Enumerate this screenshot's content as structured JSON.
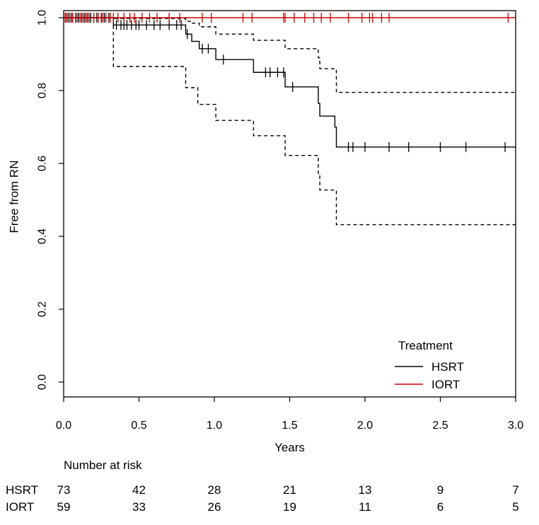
{
  "chart_data": {
    "type": "line",
    "subtype": "kaplan-meier",
    "title": "",
    "xlabel": "Years",
    "ylabel": "Free from RN",
    "xlim": [
      0,
      3
    ],
    "ylim": [
      -0.05,
      1.02
    ],
    "x_ticks": [
      0,
      0.5,
      1,
      1.5,
      2,
      2.5,
      3
    ],
    "x_tick_labels": [
      "0.0",
      "0.5",
      "1.0",
      "1.5",
      "2.0",
      "2.5",
      "3.0"
    ],
    "y_ticks": [
      0,
      0.2,
      0.4,
      0.6,
      0.8,
      1.0
    ],
    "y_tick_labels": [
      "0.0",
      "0.2",
      "0.4",
      "0.6",
      "0.8",
      "1.0"
    ],
    "legend": {
      "title": "Treatment",
      "position": "bottom-right",
      "entries": [
        {
          "label": "HSRT",
          "color": "#000000"
        },
        {
          "label": "IORT",
          "color": "#cc0000"
        }
      ]
    },
    "series": [
      {
        "name": "HSRT",
        "color": "#000000",
        "style": "solid",
        "steps": [
          [
            0,
            1.0
          ],
          [
            0.33,
            0.98
          ],
          [
            0.81,
            0.955
          ],
          [
            0.85,
            0.935
          ],
          [
            0.9,
            0.915
          ],
          [
            1.01,
            0.885
          ],
          [
            1.26,
            0.85
          ],
          [
            1.47,
            0.81
          ],
          [
            1.69,
            0.765
          ],
          [
            1.7,
            0.73
          ],
          [
            1.8,
            0.7
          ],
          [
            1.81,
            0.645
          ],
          [
            3.0,
            0.645
          ]
        ],
        "censored": [
          0.01,
          0.02,
          0.03,
          0.05,
          0.06,
          0.08,
          0.1,
          0.12,
          0.14,
          0.16,
          0.18,
          0.2,
          0.22,
          0.25,
          0.27,
          0.3,
          0.35,
          0.38,
          0.4,
          0.42,
          0.45,
          0.48,
          0.5,
          0.55,
          0.6,
          0.64,
          0.7,
          0.75,
          0.78,
          0.82,
          0.92,
          0.96,
          1.06,
          1.34,
          1.37,
          1.42,
          1.46,
          1.52,
          1.89,
          1.92,
          2.0,
          2.16,
          2.29,
          2.5,
          2.67,
          2.93
        ]
      },
      {
        "name": "HSRT upper 95% CI",
        "color": "#000000",
        "style": "dashed",
        "steps": [
          [
            0,
            1.0
          ],
          [
            0.33,
            0.998
          ],
          [
            0.81,
            0.99
          ],
          [
            0.85,
            0.985
          ],
          [
            0.9,
            0.975
          ],
          [
            1.01,
            0.955
          ],
          [
            1.26,
            0.938
          ],
          [
            1.47,
            0.915
          ],
          [
            1.69,
            0.89
          ],
          [
            1.7,
            0.86
          ],
          [
            1.81,
            0.795
          ],
          [
            3.0,
            0.795
          ]
        ]
      },
      {
        "name": "HSRT lower 95% CI",
        "color": "#000000",
        "style": "dashed",
        "steps": [
          [
            0,
            1.0
          ],
          [
            0.33,
            0.866
          ],
          [
            0.81,
            0.808
          ],
          [
            0.89,
            0.762
          ],
          [
            1.01,
            0.718
          ],
          [
            1.26,
            0.676
          ],
          [
            1.47,
            0.622
          ],
          [
            1.69,
            0.57
          ],
          [
            1.7,
            0.527
          ],
          [
            1.81,
            0.432
          ],
          [
            3.0,
            0.432
          ]
        ]
      },
      {
        "name": "IORT",
        "color": "#cc0000",
        "style": "solid",
        "steps": [
          [
            0,
            1.0
          ],
          [
            3.0,
            1.0
          ]
        ],
        "censored": [
          0.01,
          0.02,
          0.04,
          0.06,
          0.09,
          0.11,
          0.13,
          0.15,
          0.17,
          0.2,
          0.23,
          0.26,
          0.28,
          0.31,
          0.33,
          0.36,
          0.4,
          0.44,
          0.47,
          0.52,
          0.57,
          0.62,
          0.7,
          0.77,
          0.92,
          0.98,
          1.19,
          1.25,
          1.46,
          1.47,
          1.53,
          1.6,
          1.66,
          1.71,
          1.77,
          1.89,
          1.98,
          2.03,
          2.05,
          2.11,
          2.16,
          2.95
        ]
      }
    ],
    "risk_table": {
      "title": "Number at risk",
      "times": [
        0,
        0.5,
        1,
        1.5,
        2,
        2.5,
        3
      ],
      "rows": [
        {
          "label": "HSRT",
          "counts": [
            73,
            42,
            28,
            21,
            13,
            9,
            7
          ]
        },
        {
          "label": "IORT",
          "counts": [
            59,
            33,
            26,
            19,
            11,
            6,
            5
          ]
        }
      ]
    }
  }
}
